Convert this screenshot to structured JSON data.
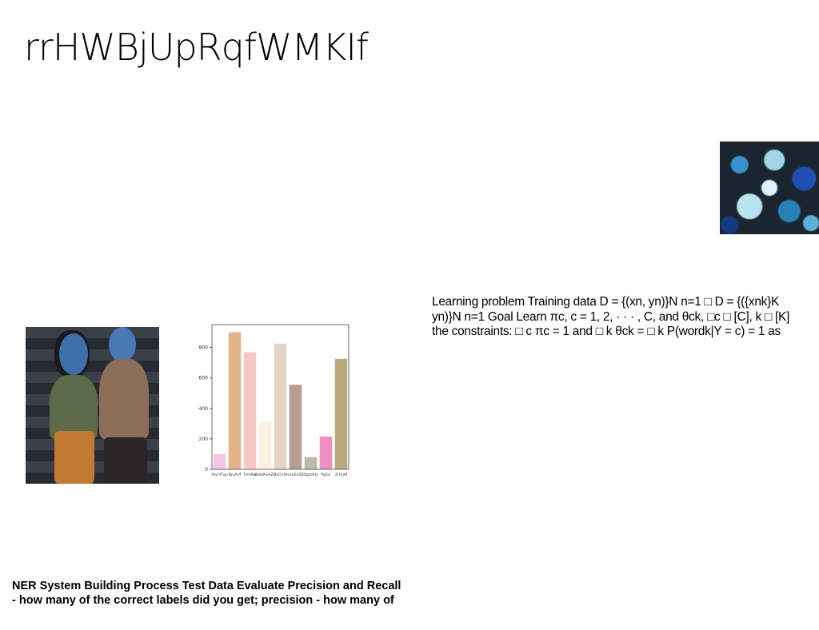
{
  "title": "rrHWBjUpRqfWMKIf",
  "paragraph": {
    "lines": [
      "Learning problem Training data D = {(xn, yn)}N n=1 □ D = {({xnk}K",
      "yn)}N n=1 Goal Learn πc, c = 1, 2, · · · , C, and θck, □c □ [C], k □ [K]",
      "the constraints: □ c πc = 1 and □ k θck = □ k P(wordk|Y = c) = 1 as"
    ]
  },
  "bottom_text": {
    "lines": [
      "NER System Building Process Test Data Evaluate Precision and Recall",
      "- how many of the correct labels did you get; precision - how many of"
    ]
  },
  "chart_data": {
    "type": "bar",
    "categories": [
      "YoyhfTgu",
      "NjuAUf",
      "TmHbx",
      "WobWvAZO",
      "DsClcM",
      "ozaEnZB",
      "Qgtdhkl",
      "PgGn",
      "ZrHyM"
    ],
    "values": [
      100,
      900,
      770,
      315,
      825,
      555,
      80,
      215,
      725
    ],
    "colors": [
      "#f5c6e4",
      "#e3b48a",
      "#f7c9c6",
      "#fbf2e2",
      "#e6d4c8",
      "#b89d94",
      "#bdbaa8",
      "#ef8fc4",
      "#baa87f"
    ],
    "yticks": [
      0,
      200,
      400,
      600,
      800
    ],
    "ylim": [
      0,
      950
    ],
    "title": "",
    "xlabel": "",
    "ylabel": ""
  }
}
